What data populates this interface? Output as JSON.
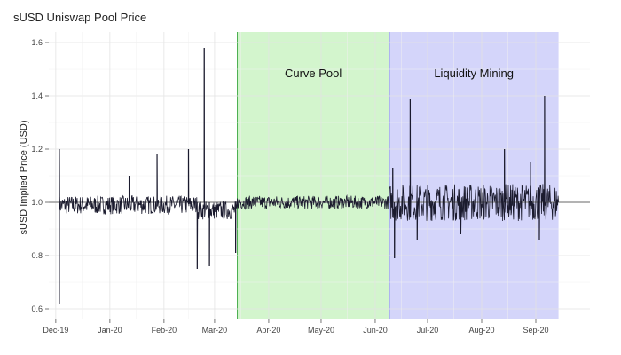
{
  "chart_data": {
    "type": "line",
    "title": "sUSD Uniswap Pool Price",
    "xlabel": "",
    "ylabel": "sUSD Implied Price (USD)",
    "ylim": [
      0.56,
      1.64
    ],
    "xlim": [
      "2019-11-27",
      "2020-10-02"
    ],
    "y_ticks": [
      0.6,
      0.8,
      1.0,
      1.2,
      1.4,
      1.6
    ],
    "y_tick_labels": [
      "0.6",
      "0.8",
      "1.0",
      "1.2",
      "1.4",
      "1.6"
    ],
    "x_ticks": [
      "2019-12-01",
      "2020-01-01",
      "2020-02-01",
      "2020-03-01",
      "2020-04-01",
      "2020-05-01",
      "2020-06-01",
      "2020-07-01",
      "2020-08-01",
      "2020-09-01"
    ],
    "x_tick_labels": [
      "Dec-19",
      "Jan-20",
      "Feb-20",
      "Mar-20",
      "Apr-20",
      "May-20",
      "Jun-20",
      "Jul-20",
      "Aug-20",
      "Sep-20"
    ],
    "reference_line": 1.0,
    "grid": true,
    "regions": [
      {
        "label": "Curve Pool",
        "start": "2020-03-14",
        "end": "2020-06-09",
        "color": "#d3f5cd",
        "edge": "#4caf50"
      },
      {
        "label": "Liquidity Mining",
        "start": "2020-06-09",
        "end": "2020-09-14",
        "color": "#d4d5fa",
        "edge": "#2233cc"
      }
    ],
    "spikes": [
      {
        "x": "2019-12-03",
        "y": 1.2
      },
      {
        "x": "2019-12-03",
        "y": 0.62
      },
      {
        "x": "2019-12-03",
        "y": 0.75
      },
      {
        "x": "2020-01-12",
        "y": 1.1
      },
      {
        "x": "2020-01-28",
        "y": 1.18
      },
      {
        "x": "2020-02-15",
        "y": 1.2
      },
      {
        "x": "2020-02-20",
        "y": 0.75
      },
      {
        "x": "2020-02-24",
        "y": 1.58
      },
      {
        "x": "2020-02-27",
        "y": 0.76
      },
      {
        "x": "2020-03-13",
        "y": 0.81
      },
      {
        "x": "2020-06-11",
        "y": 1.13
      },
      {
        "x": "2020-06-12",
        "y": 0.79
      },
      {
        "x": "2020-06-21",
        "y": 1.39
      },
      {
        "x": "2020-06-25",
        "y": 0.86
      },
      {
        "x": "2020-07-20",
        "y": 0.88
      },
      {
        "x": "2020-08-14",
        "y": 1.2
      },
      {
        "x": "2020-08-29",
        "y": 1.15
      },
      {
        "x": "2020-09-03",
        "y": 0.86
      },
      {
        "x": "2020-09-06",
        "y": 1.4
      }
    ]
  }
}
